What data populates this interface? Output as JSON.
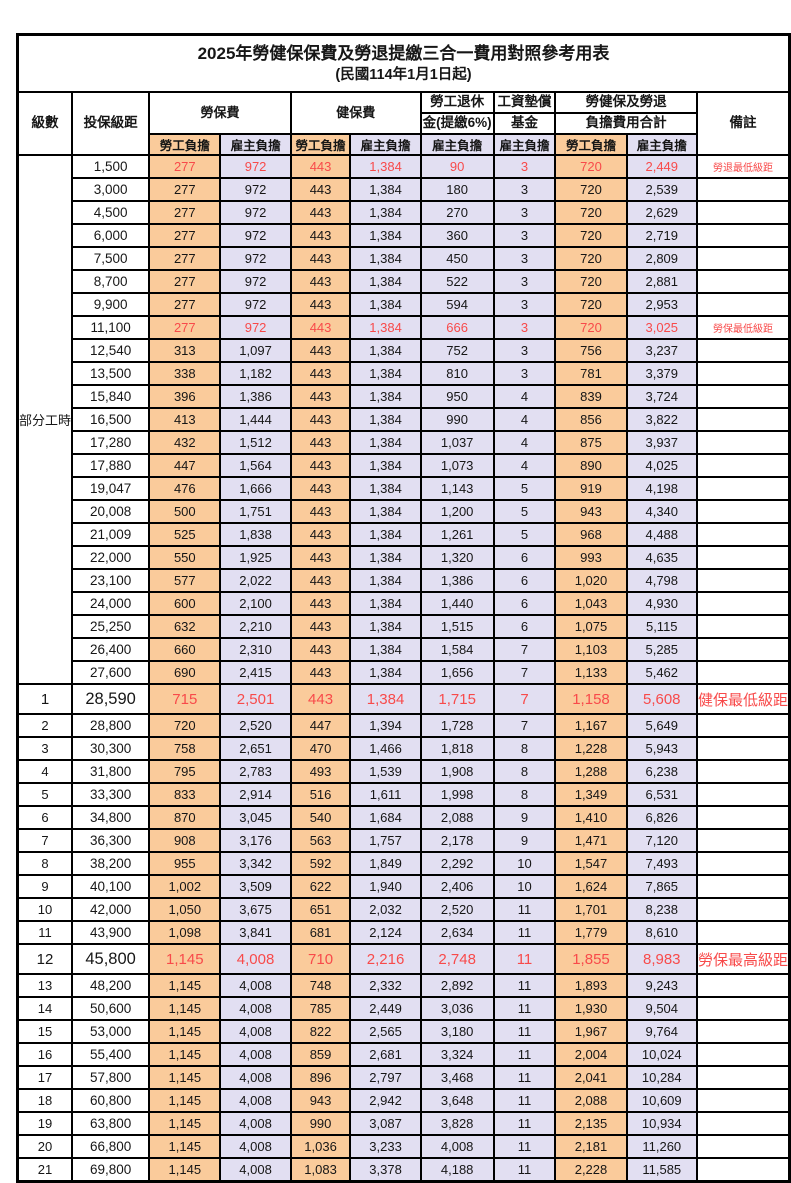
{
  "page": {
    "title": "2025年勞健保保費及勞退提繳三合一費用對照參考用表",
    "subtitle": "(民國114年1月1日起)"
  },
  "colors": {
    "employee_bg": "#FACB9B",
    "employer_bg": "#E2DFF2",
    "red_text": "#F84A4A",
    "border": "#000000"
  },
  "header": {
    "level": "級數",
    "salary": "投保級距",
    "labor_group": "勞保費",
    "health_group": "健保費",
    "pension_line1": "勞工退休",
    "pension_line2": "金(提繳6%)",
    "wage_fund_line1": "工資墊償",
    "wage_fund_line2": "基金",
    "total_line1": "勞健保及勞退",
    "total_line2": "負擔費用合計",
    "remark": "備註",
    "employee_label": "勞工負擔",
    "employer_label": "雇主負擔"
  },
  "part_time": {
    "label": "部分工時",
    "row_count": 23
  },
  "rows": [
    {
      "lv": "",
      "sal": "1,500",
      "v": [
        "277",
        "972",
        "443",
        "1,384",
        "90",
        "3",
        "720",
        "2,449"
      ],
      "note": "勞退最低級距",
      "style": "red"
    },
    {
      "lv": "",
      "sal": "3,000",
      "v": [
        "277",
        "972",
        "443",
        "1,384",
        "180",
        "3",
        "720",
        "2,539"
      ],
      "note": "",
      "style": ""
    },
    {
      "lv": "",
      "sal": "4,500",
      "v": [
        "277",
        "972",
        "443",
        "1,384",
        "270",
        "3",
        "720",
        "2,629"
      ],
      "note": "",
      "style": ""
    },
    {
      "lv": "",
      "sal": "6,000",
      "v": [
        "277",
        "972",
        "443",
        "1,384",
        "360",
        "3",
        "720",
        "2,719"
      ],
      "note": "",
      "style": ""
    },
    {
      "lv": "",
      "sal": "7,500",
      "v": [
        "277",
        "972",
        "443",
        "1,384",
        "450",
        "3",
        "720",
        "2,809"
      ],
      "note": "",
      "style": ""
    },
    {
      "lv": "",
      "sal": "8,700",
      "v": [
        "277",
        "972",
        "443",
        "1,384",
        "522",
        "3",
        "720",
        "2,881"
      ],
      "note": "",
      "style": ""
    },
    {
      "lv": "",
      "sal": "9,900",
      "v": [
        "277",
        "972",
        "443",
        "1,384",
        "594",
        "3",
        "720",
        "2,953"
      ],
      "note": "",
      "style": ""
    },
    {
      "lv": "",
      "sal": "11,100",
      "v": [
        "277",
        "972",
        "443",
        "1,384",
        "666",
        "3",
        "720",
        "3,025"
      ],
      "note": "勞保最低級距",
      "style": "red"
    },
    {
      "lv": "",
      "sal": "12,540",
      "v": [
        "313",
        "1,097",
        "443",
        "1,384",
        "752",
        "3",
        "756",
        "3,237"
      ],
      "note": "",
      "style": ""
    },
    {
      "lv": "",
      "sal": "13,500",
      "v": [
        "338",
        "1,182",
        "443",
        "1,384",
        "810",
        "3",
        "781",
        "3,379"
      ],
      "note": "",
      "style": ""
    },
    {
      "lv": "",
      "sal": "15,840",
      "v": [
        "396",
        "1,386",
        "443",
        "1,384",
        "950",
        "4",
        "839",
        "3,724"
      ],
      "note": "",
      "style": ""
    },
    {
      "lv": "",
      "sal": "16,500",
      "v": [
        "413",
        "1,444",
        "443",
        "1,384",
        "990",
        "4",
        "856",
        "3,822"
      ],
      "note": "",
      "style": ""
    },
    {
      "lv": "",
      "sal": "17,280",
      "v": [
        "432",
        "1,512",
        "443",
        "1,384",
        "1,037",
        "4",
        "875",
        "3,937"
      ],
      "note": "",
      "style": ""
    },
    {
      "lv": "",
      "sal": "17,880",
      "v": [
        "447",
        "1,564",
        "443",
        "1,384",
        "1,073",
        "4",
        "890",
        "4,025"
      ],
      "note": "",
      "style": ""
    },
    {
      "lv": "",
      "sal": "19,047",
      "v": [
        "476",
        "1,666",
        "443",
        "1,384",
        "1,143",
        "5",
        "919",
        "4,198"
      ],
      "note": "",
      "style": ""
    },
    {
      "lv": "",
      "sal": "20,008",
      "v": [
        "500",
        "1,751",
        "443",
        "1,384",
        "1,200",
        "5",
        "943",
        "4,340"
      ],
      "note": "",
      "style": ""
    },
    {
      "lv": "",
      "sal": "21,009",
      "v": [
        "525",
        "1,838",
        "443",
        "1,384",
        "1,261",
        "5",
        "968",
        "4,488"
      ],
      "note": "",
      "style": ""
    },
    {
      "lv": "",
      "sal": "22,000",
      "v": [
        "550",
        "1,925",
        "443",
        "1,384",
        "1,320",
        "6",
        "993",
        "4,635"
      ],
      "note": "",
      "style": ""
    },
    {
      "lv": "",
      "sal": "23,100",
      "v": [
        "577",
        "2,022",
        "443",
        "1,384",
        "1,386",
        "6",
        "1,020",
        "4,798"
      ],
      "note": "",
      "style": ""
    },
    {
      "lv": "",
      "sal": "24,000",
      "v": [
        "600",
        "2,100",
        "443",
        "1,384",
        "1,440",
        "6",
        "1,043",
        "4,930"
      ],
      "note": "",
      "style": ""
    },
    {
      "lv": "",
      "sal": "25,250",
      "v": [
        "632",
        "2,210",
        "443",
        "1,384",
        "1,515",
        "6",
        "1,075",
        "5,115"
      ],
      "note": "",
      "style": ""
    },
    {
      "lv": "",
      "sal": "26,400",
      "v": [
        "660",
        "2,310",
        "443",
        "1,384",
        "1,584",
        "7",
        "1,103",
        "5,285"
      ],
      "note": "",
      "style": ""
    },
    {
      "lv": "",
      "sal": "27,600",
      "v": [
        "690",
        "2,415",
        "443",
        "1,384",
        "1,656",
        "7",
        "1,133",
        "5,462"
      ],
      "note": "",
      "style": ""
    },
    {
      "lv": "1",
      "sal": "28,590",
      "v": [
        "715",
        "2,501",
        "443",
        "1,384",
        "1,715",
        "7",
        "1,158",
        "5,608"
      ],
      "note": "健保最低級距",
      "style": "red-big"
    },
    {
      "lv": "2",
      "sal": "28,800",
      "v": [
        "720",
        "2,520",
        "447",
        "1,394",
        "1,728",
        "7",
        "1,167",
        "5,649"
      ],
      "note": "",
      "style": ""
    },
    {
      "lv": "3",
      "sal": "30,300",
      "v": [
        "758",
        "2,651",
        "470",
        "1,466",
        "1,818",
        "8",
        "1,228",
        "5,943"
      ],
      "note": "",
      "style": ""
    },
    {
      "lv": "4",
      "sal": "31,800",
      "v": [
        "795",
        "2,783",
        "493",
        "1,539",
        "1,908",
        "8",
        "1,288",
        "6,238"
      ],
      "note": "",
      "style": ""
    },
    {
      "lv": "5",
      "sal": "33,300",
      "v": [
        "833",
        "2,914",
        "516",
        "1,611",
        "1,998",
        "8",
        "1,349",
        "6,531"
      ],
      "note": "",
      "style": ""
    },
    {
      "lv": "6",
      "sal": "34,800",
      "v": [
        "870",
        "3,045",
        "540",
        "1,684",
        "2,088",
        "9",
        "1,410",
        "6,826"
      ],
      "note": "",
      "style": ""
    },
    {
      "lv": "7",
      "sal": "36,300",
      "v": [
        "908",
        "3,176",
        "563",
        "1,757",
        "2,178",
        "9",
        "1,471",
        "7,120"
      ],
      "note": "",
      "style": ""
    },
    {
      "lv": "8",
      "sal": "38,200",
      "v": [
        "955",
        "3,342",
        "592",
        "1,849",
        "2,292",
        "10",
        "1,547",
        "7,493"
      ],
      "note": "",
      "style": ""
    },
    {
      "lv": "9",
      "sal": "40,100",
      "v": [
        "1,002",
        "3,509",
        "622",
        "1,940",
        "2,406",
        "10",
        "1,624",
        "7,865"
      ],
      "note": "",
      "style": ""
    },
    {
      "lv": "10",
      "sal": "42,000",
      "v": [
        "1,050",
        "3,675",
        "651",
        "2,032",
        "2,520",
        "11",
        "1,701",
        "8,238"
      ],
      "note": "",
      "style": ""
    },
    {
      "lv": "11",
      "sal": "43,900",
      "v": [
        "1,098",
        "3,841",
        "681",
        "2,124",
        "2,634",
        "11",
        "1,779",
        "8,610"
      ],
      "note": "",
      "style": ""
    },
    {
      "lv": "12",
      "sal": "45,800",
      "v": [
        "1,145",
        "4,008",
        "710",
        "2,216",
        "2,748",
        "11",
        "1,855",
        "8,983"
      ],
      "note": "勞保最高級距",
      "style": "red-big"
    },
    {
      "lv": "13",
      "sal": "48,200",
      "v": [
        "1,145",
        "4,008",
        "748",
        "2,332",
        "2,892",
        "11",
        "1,893",
        "9,243"
      ],
      "note": "",
      "style": ""
    },
    {
      "lv": "14",
      "sal": "50,600",
      "v": [
        "1,145",
        "4,008",
        "785",
        "2,449",
        "3,036",
        "11",
        "1,930",
        "9,504"
      ],
      "note": "",
      "style": ""
    },
    {
      "lv": "15",
      "sal": "53,000",
      "v": [
        "1,145",
        "4,008",
        "822",
        "2,565",
        "3,180",
        "11",
        "1,967",
        "9,764"
      ],
      "note": "",
      "style": ""
    },
    {
      "lv": "16",
      "sal": "55,400",
      "v": [
        "1,145",
        "4,008",
        "859",
        "2,681",
        "3,324",
        "11",
        "2,004",
        "10,024"
      ],
      "note": "",
      "style": ""
    },
    {
      "lv": "17",
      "sal": "57,800",
      "v": [
        "1,145",
        "4,008",
        "896",
        "2,797",
        "3,468",
        "11",
        "2,041",
        "10,284"
      ],
      "note": "",
      "style": ""
    },
    {
      "lv": "18",
      "sal": "60,800",
      "v": [
        "1,145",
        "4,008",
        "943",
        "2,942",
        "3,648",
        "11",
        "2,088",
        "10,609"
      ],
      "note": "",
      "style": ""
    },
    {
      "lv": "19",
      "sal": "63,800",
      "v": [
        "1,145",
        "4,008",
        "990",
        "3,087",
        "3,828",
        "11",
        "2,135",
        "10,934"
      ],
      "note": "",
      "style": ""
    },
    {
      "lv": "20",
      "sal": "66,800",
      "v": [
        "1,145",
        "4,008",
        "1,036",
        "3,233",
        "4,008",
        "11",
        "2,181",
        "11,260"
      ],
      "note": "",
      "style": ""
    },
    {
      "lv": "21",
      "sal": "69,800",
      "v": [
        "1,145",
        "4,008",
        "1,083",
        "3,378",
        "4,188",
        "11",
        "2,228",
        "11,585"
      ],
      "note": "",
      "style": ""
    }
  ],
  "value_column_names": [
    "labor-employee-fee",
    "labor-employer-fee",
    "health-employee-fee",
    "health-employer-fee",
    "pension-employer-fee",
    "wage-fund-employer-fee",
    "total-employee-fee",
    "total-employer-fee"
  ]
}
